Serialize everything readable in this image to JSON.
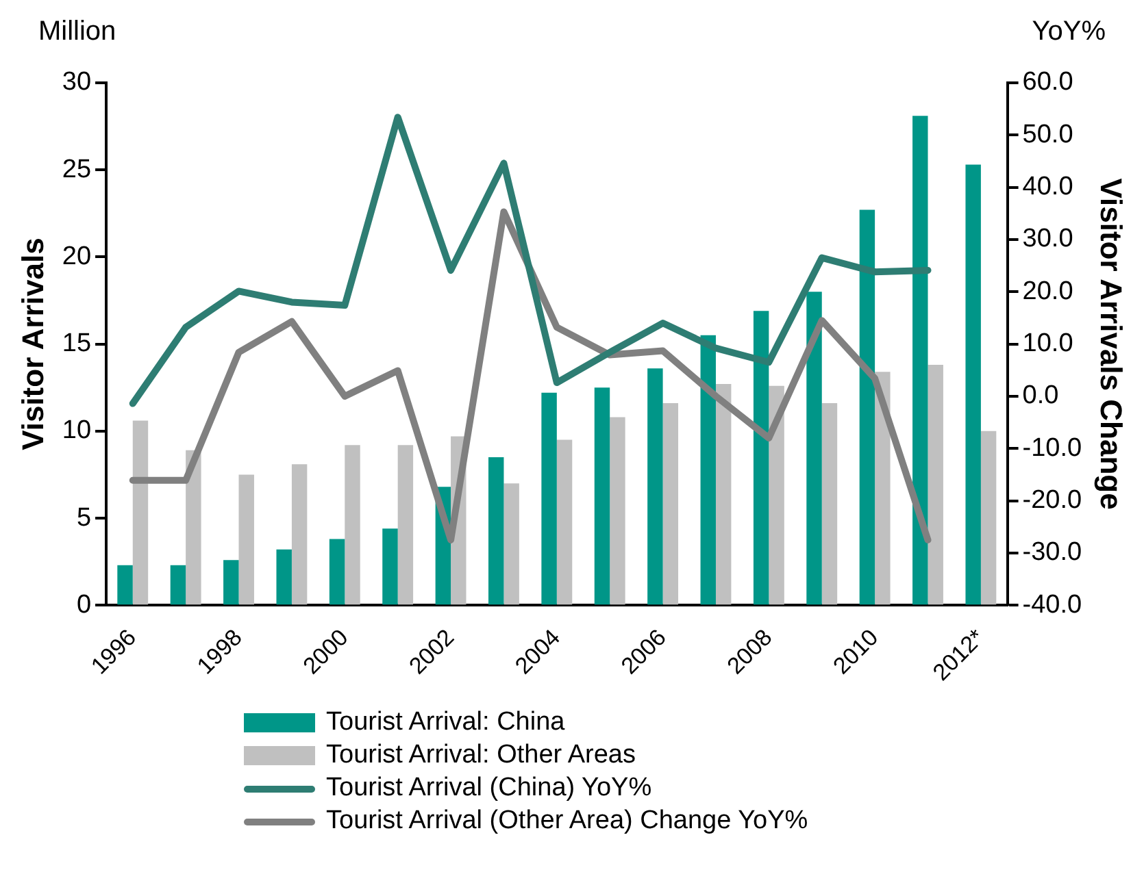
{
  "chart_data": {
    "type": "bar",
    "ylabel": "Visitor Arrivals",
    "y2label": "Visitor Arrivals Change",
    "annotations": [
      "Million",
      "YoY%"
    ],
    "categories": [
      "1996",
      null,
      "1998",
      null,
      "2000",
      null,
      "2002",
      null,
      "2004",
      null,
      "2006",
      null,
      "2008",
      null,
      "2010",
      null,
      "2012*"
    ],
    "series": [
      {
        "name": "Tourist Arrival: China",
        "color": "#009688",
        "values": [
          2.3,
          2.3,
          2.6,
          3.2,
          3.8,
          4.4,
          6.8,
          8.5,
          12.2,
          12.5,
          13.6,
          15.5,
          16.9,
          18.0,
          22.7,
          28.1,
          25.3
        ]
      },
      {
        "name": "Tourist Arrival: Other Areas",
        "color": "#c0c0c0",
        "values": [
          10.6,
          8.9,
          7.5,
          8.1,
          9.2,
          9.2,
          9.7,
          7.0,
          9.5,
          10.8,
          11.6,
          12.7,
          12.6,
          11.6,
          13.4,
          13.8,
          10.0
        ]
      },
      {
        "name": "Tourist Arrival (China) YoY%",
        "type": "line",
        "axis": "y2",
        "color": "#2e7d73",
        "values": [
          -1.4,
          13.2,
          20.1,
          18.0,
          17.4,
          53.4,
          24.1,
          44.6,
          2.6,
          8.4,
          14.0,
          9.2,
          6.5,
          26.5,
          23.8,
          24.1,
          null
        ]
      },
      {
        "name": "Tourist Arrival (Other Area) Change YoY%",
        "type": "line",
        "axis": "y2",
        "color": "#808080",
        "values": [
          -16.1,
          -16.1,
          8.4,
          14.3,
          0.0,
          4.9,
          -27.5,
          35.3,
          13.2,
          7.9,
          8.7,
          0.0,
          -8.0,
          14.5,
          3.4,
          -27.5,
          null
        ]
      }
    ],
    "ylim": [
      0,
      30
    ],
    "yticks": [
      0,
      5,
      10,
      15,
      20,
      25,
      30
    ],
    "y2lim": [
      -40,
      60
    ],
    "y2ticks": [
      {
        "value": -40,
        "label": "-40.0"
      },
      {
        "value": -30,
        "label": "-30.0"
      },
      {
        "value": -20,
        "label": "-20.0"
      },
      {
        "value": -10,
        "label": "-10.0"
      },
      {
        "value": 0,
        "label": "0.0"
      },
      {
        "value": 10,
        "label": "10.0"
      },
      {
        "value": 20,
        "label": "20.0"
      },
      {
        "value": 30,
        "label": "30.0"
      },
      {
        "value": 40,
        "label": "40.0"
      },
      {
        "value": 50,
        "label": "50.0"
      },
      {
        "value": 60,
        "label": "60.0"
      }
    ],
    "legend": "bottom"
  }
}
